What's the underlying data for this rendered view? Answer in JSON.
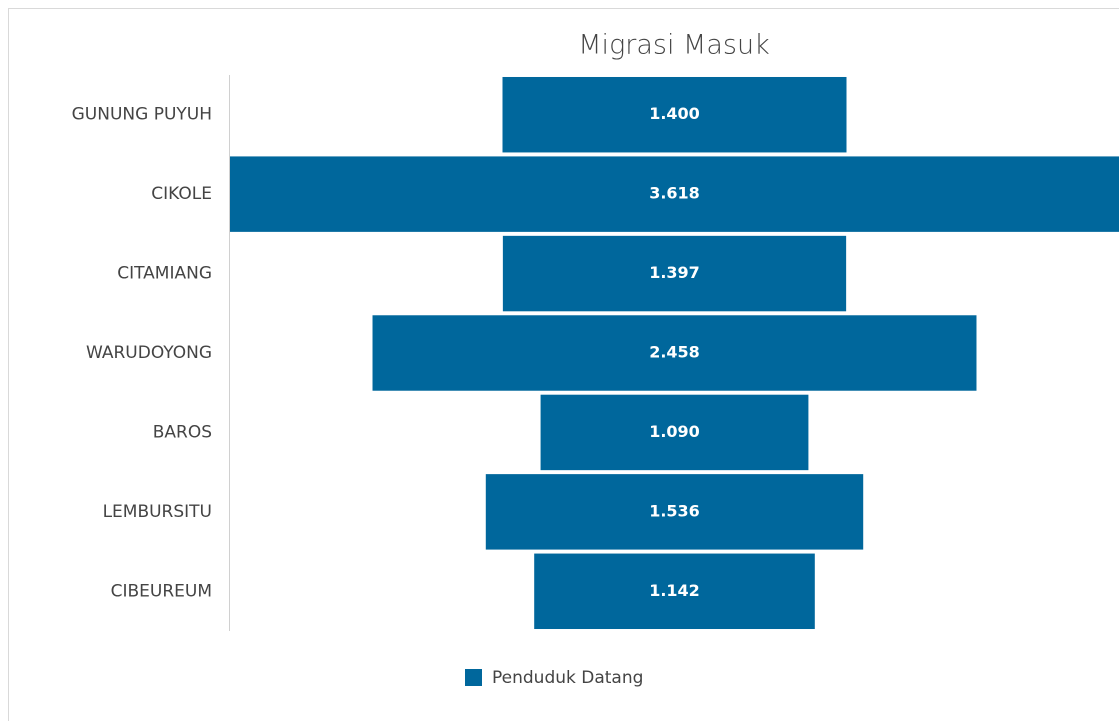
{
  "chart_data": {
    "type": "funnel",
    "title": "Migrasi Masuk",
    "categories": [
      "GUNUNG PUYUH",
      "CIKOLE",
      "CITAMIANG",
      "WARUDOYONG",
      "BAROS",
      "LEMBURSITU",
      "CIBEUREUM"
    ],
    "series": [
      {
        "name": "Penduduk Datang",
        "color": "#00679c",
        "values": [
          1400,
          3618,
          1397,
          2458,
          1090,
          1536,
          1142
        ],
        "value_labels": [
          "1.400",
          "3.618",
          "1.397",
          "2.458",
          "1.090",
          "1.536",
          "1.142"
        ]
      }
    ]
  }
}
